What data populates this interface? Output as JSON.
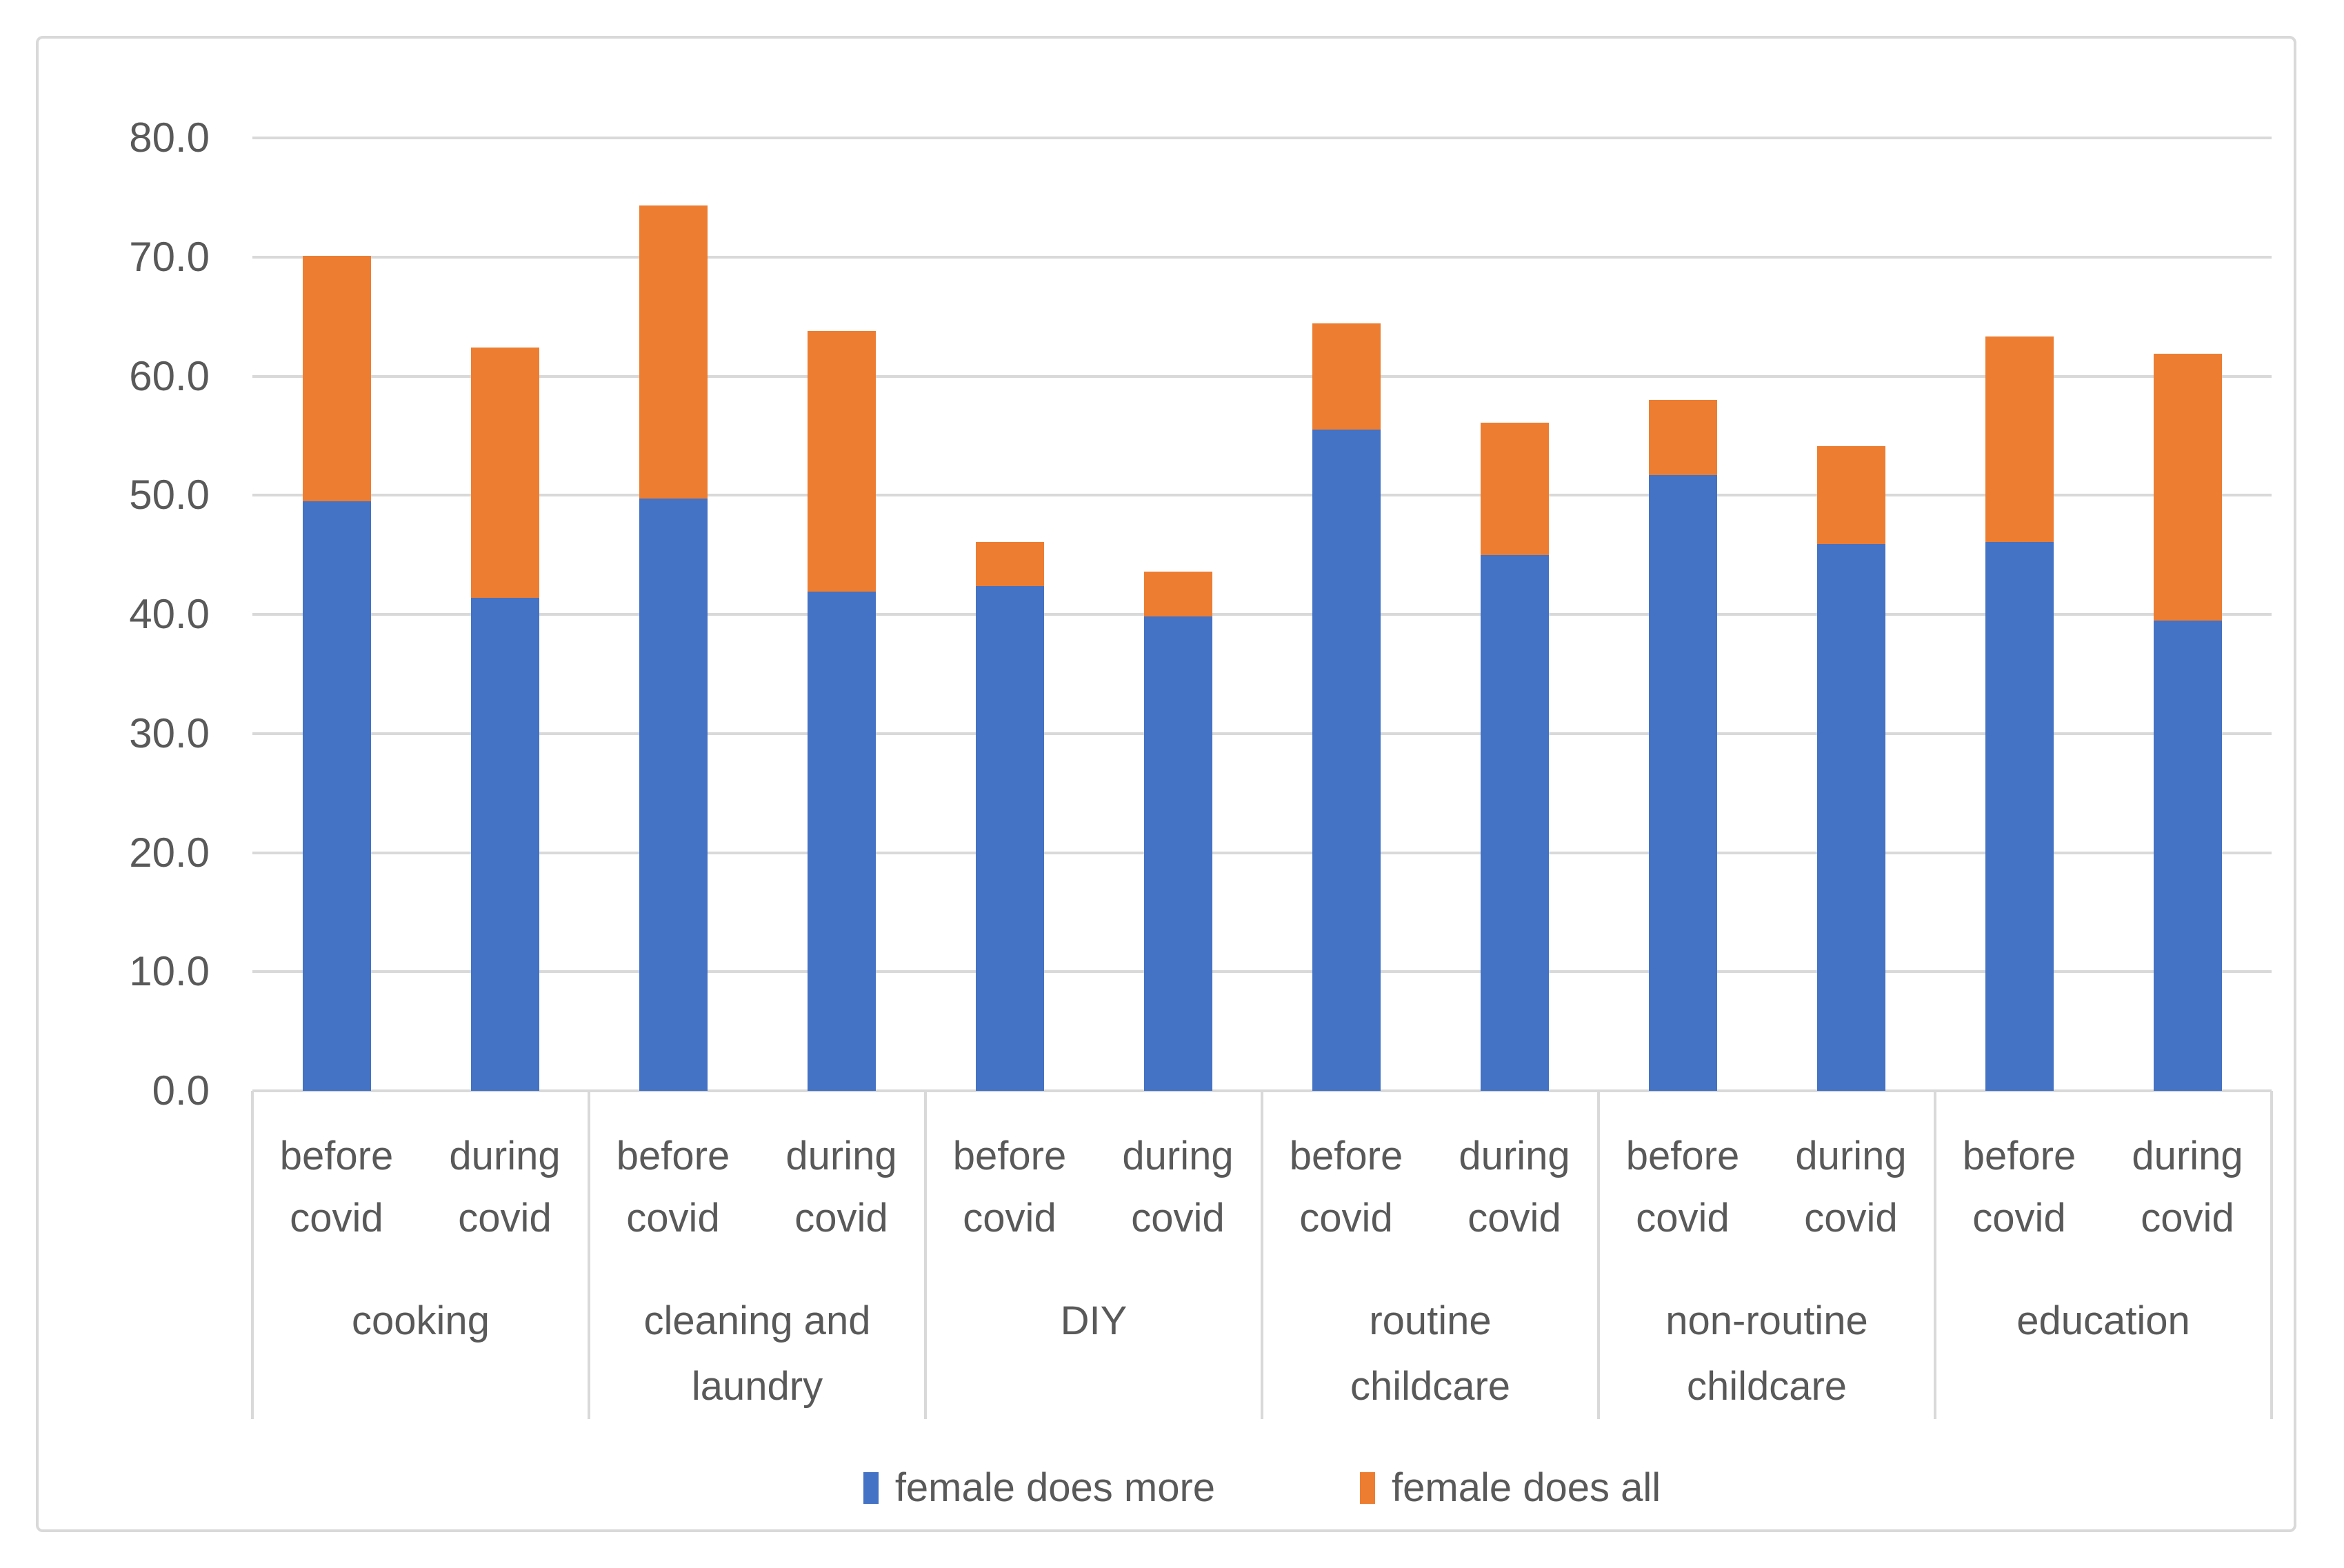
{
  "chart_data": {
    "type": "bar",
    "stacked": true,
    "title": "",
    "xlabel": "",
    "ylabel": "",
    "categories": [
      "cooking",
      "cleaning and laundry",
      "DIY",
      "routine childcare",
      "non-routine childcare",
      "education"
    ],
    "conditions": [
      "before covid",
      "during covid"
    ],
    "bar_order_note": "12 bars: index = category_index * 2 + condition_index",
    "series": [
      {
        "name": "female does more",
        "color": "#4472C4",
        "values": [
          49.5,
          41.4,
          49.7,
          41.9,
          42.4,
          39.8,
          55.5,
          45.0,
          51.7,
          45.9,
          46.1,
          39.5
        ]
      },
      {
        "name": "female does all",
        "color": "#ED7D31",
        "values": [
          20.6,
          21.0,
          24.6,
          21.9,
          3.7,
          3.8,
          8.9,
          11.1,
          6.3,
          8.2,
          17.2,
          22.4
        ]
      }
    ],
    "stack_totals": [
      70.1,
      62.4,
      74.3,
      63.8,
      46.1,
      43.6,
      64.4,
      56.1,
      58.0,
      54.1,
      63.3,
      61.9
    ],
    "ylim": [
      0,
      80
    ],
    "ytick_step": 10,
    "ytick_labels": [
      "0.0",
      "10.0",
      "20.0",
      "30.0",
      "40.0",
      "50.0",
      "60.0",
      "70.0",
      "80.0"
    ],
    "grid": "horizontal",
    "legend_position": "bottom",
    "colors": {
      "gridline": "#D9D9D9",
      "axis_text": "#595959",
      "frame_border": "#D9D9D9",
      "background": "#FFFFFF"
    }
  }
}
